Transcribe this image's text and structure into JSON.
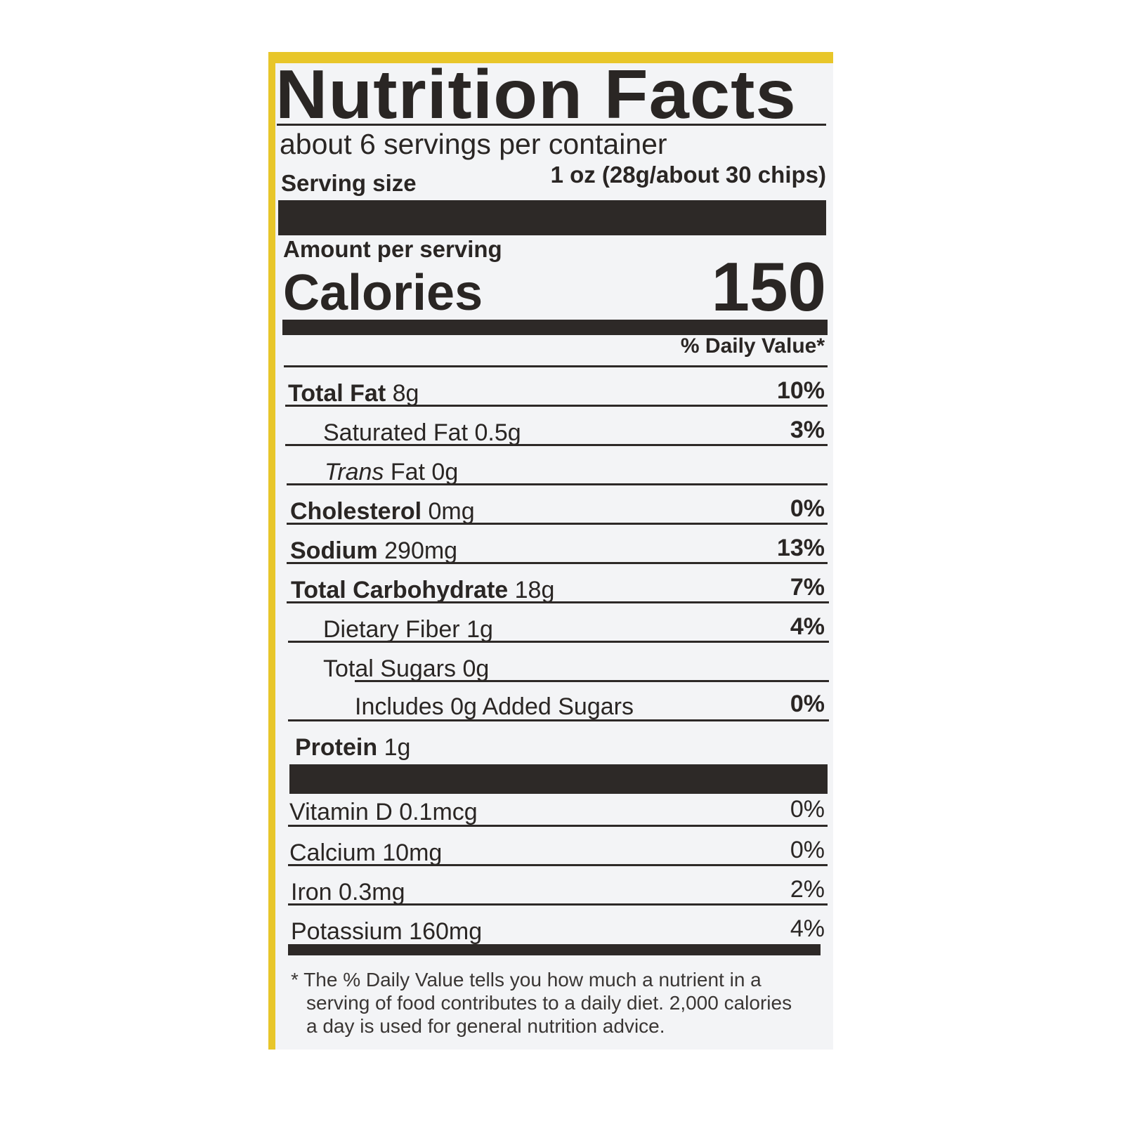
{
  "title": "Nutrition Facts",
  "servings_per_container": "about 6 servings per container",
  "serving_size_label": "Serving size",
  "serving_size_value": "1 oz (28g/about 30 chips)",
  "amount_per_serving": "Amount per serving",
  "calories_label": "Calories",
  "calories_value": "150",
  "daily_value_header": "% Daily Value*",
  "nutrients": [
    {
      "name": "Total Fat",
      "amount": "8g",
      "dv": "10%"
    },
    {
      "name": "Saturated Fat",
      "amount": "0.5g",
      "dv": "3%"
    },
    {
      "name": "Trans",
      "amount": "Fat 0g",
      "dv": ""
    },
    {
      "name": "Cholesterol",
      "amount": "0mg",
      "dv": "0%"
    },
    {
      "name": "Sodium",
      "amount": "290mg",
      "dv": "13%"
    },
    {
      "name": "Total Carbohydrate",
      "amount": "18g",
      "dv": "7%"
    },
    {
      "name": "Dietary Fiber",
      "amount": "1g",
      "dv": "4%"
    },
    {
      "name": "Total Sugars",
      "amount": "0g",
      "dv": ""
    },
    {
      "name": "Includes 0g Added Sugars",
      "amount": "",
      "dv": "0%"
    },
    {
      "name": "Protein",
      "amount": "1g",
      "dv": ""
    }
  ],
  "vitamins": [
    {
      "name": "Vitamin D 0.1mcg",
      "dv": "0%"
    },
    {
      "name": "Calcium 10mg",
      "dv": "0%"
    },
    {
      "name": "Iron 0.3mg",
      "dv": "2%"
    },
    {
      "name": "Potassium 160mg",
      "dv": "4%"
    }
  ],
  "footnote_line1": "* The % Daily Value tells you how much a nutrient in a",
  "footnote_line2": "serving of food contributes to a daily diet. 2,000 calories",
  "footnote_line3": "a day is used for general nutrition advice.",
  "colors": {
    "label_bg": "#f3f4f6",
    "ink": "#2a2624",
    "package_yellow": "#e8c62a"
  }
}
